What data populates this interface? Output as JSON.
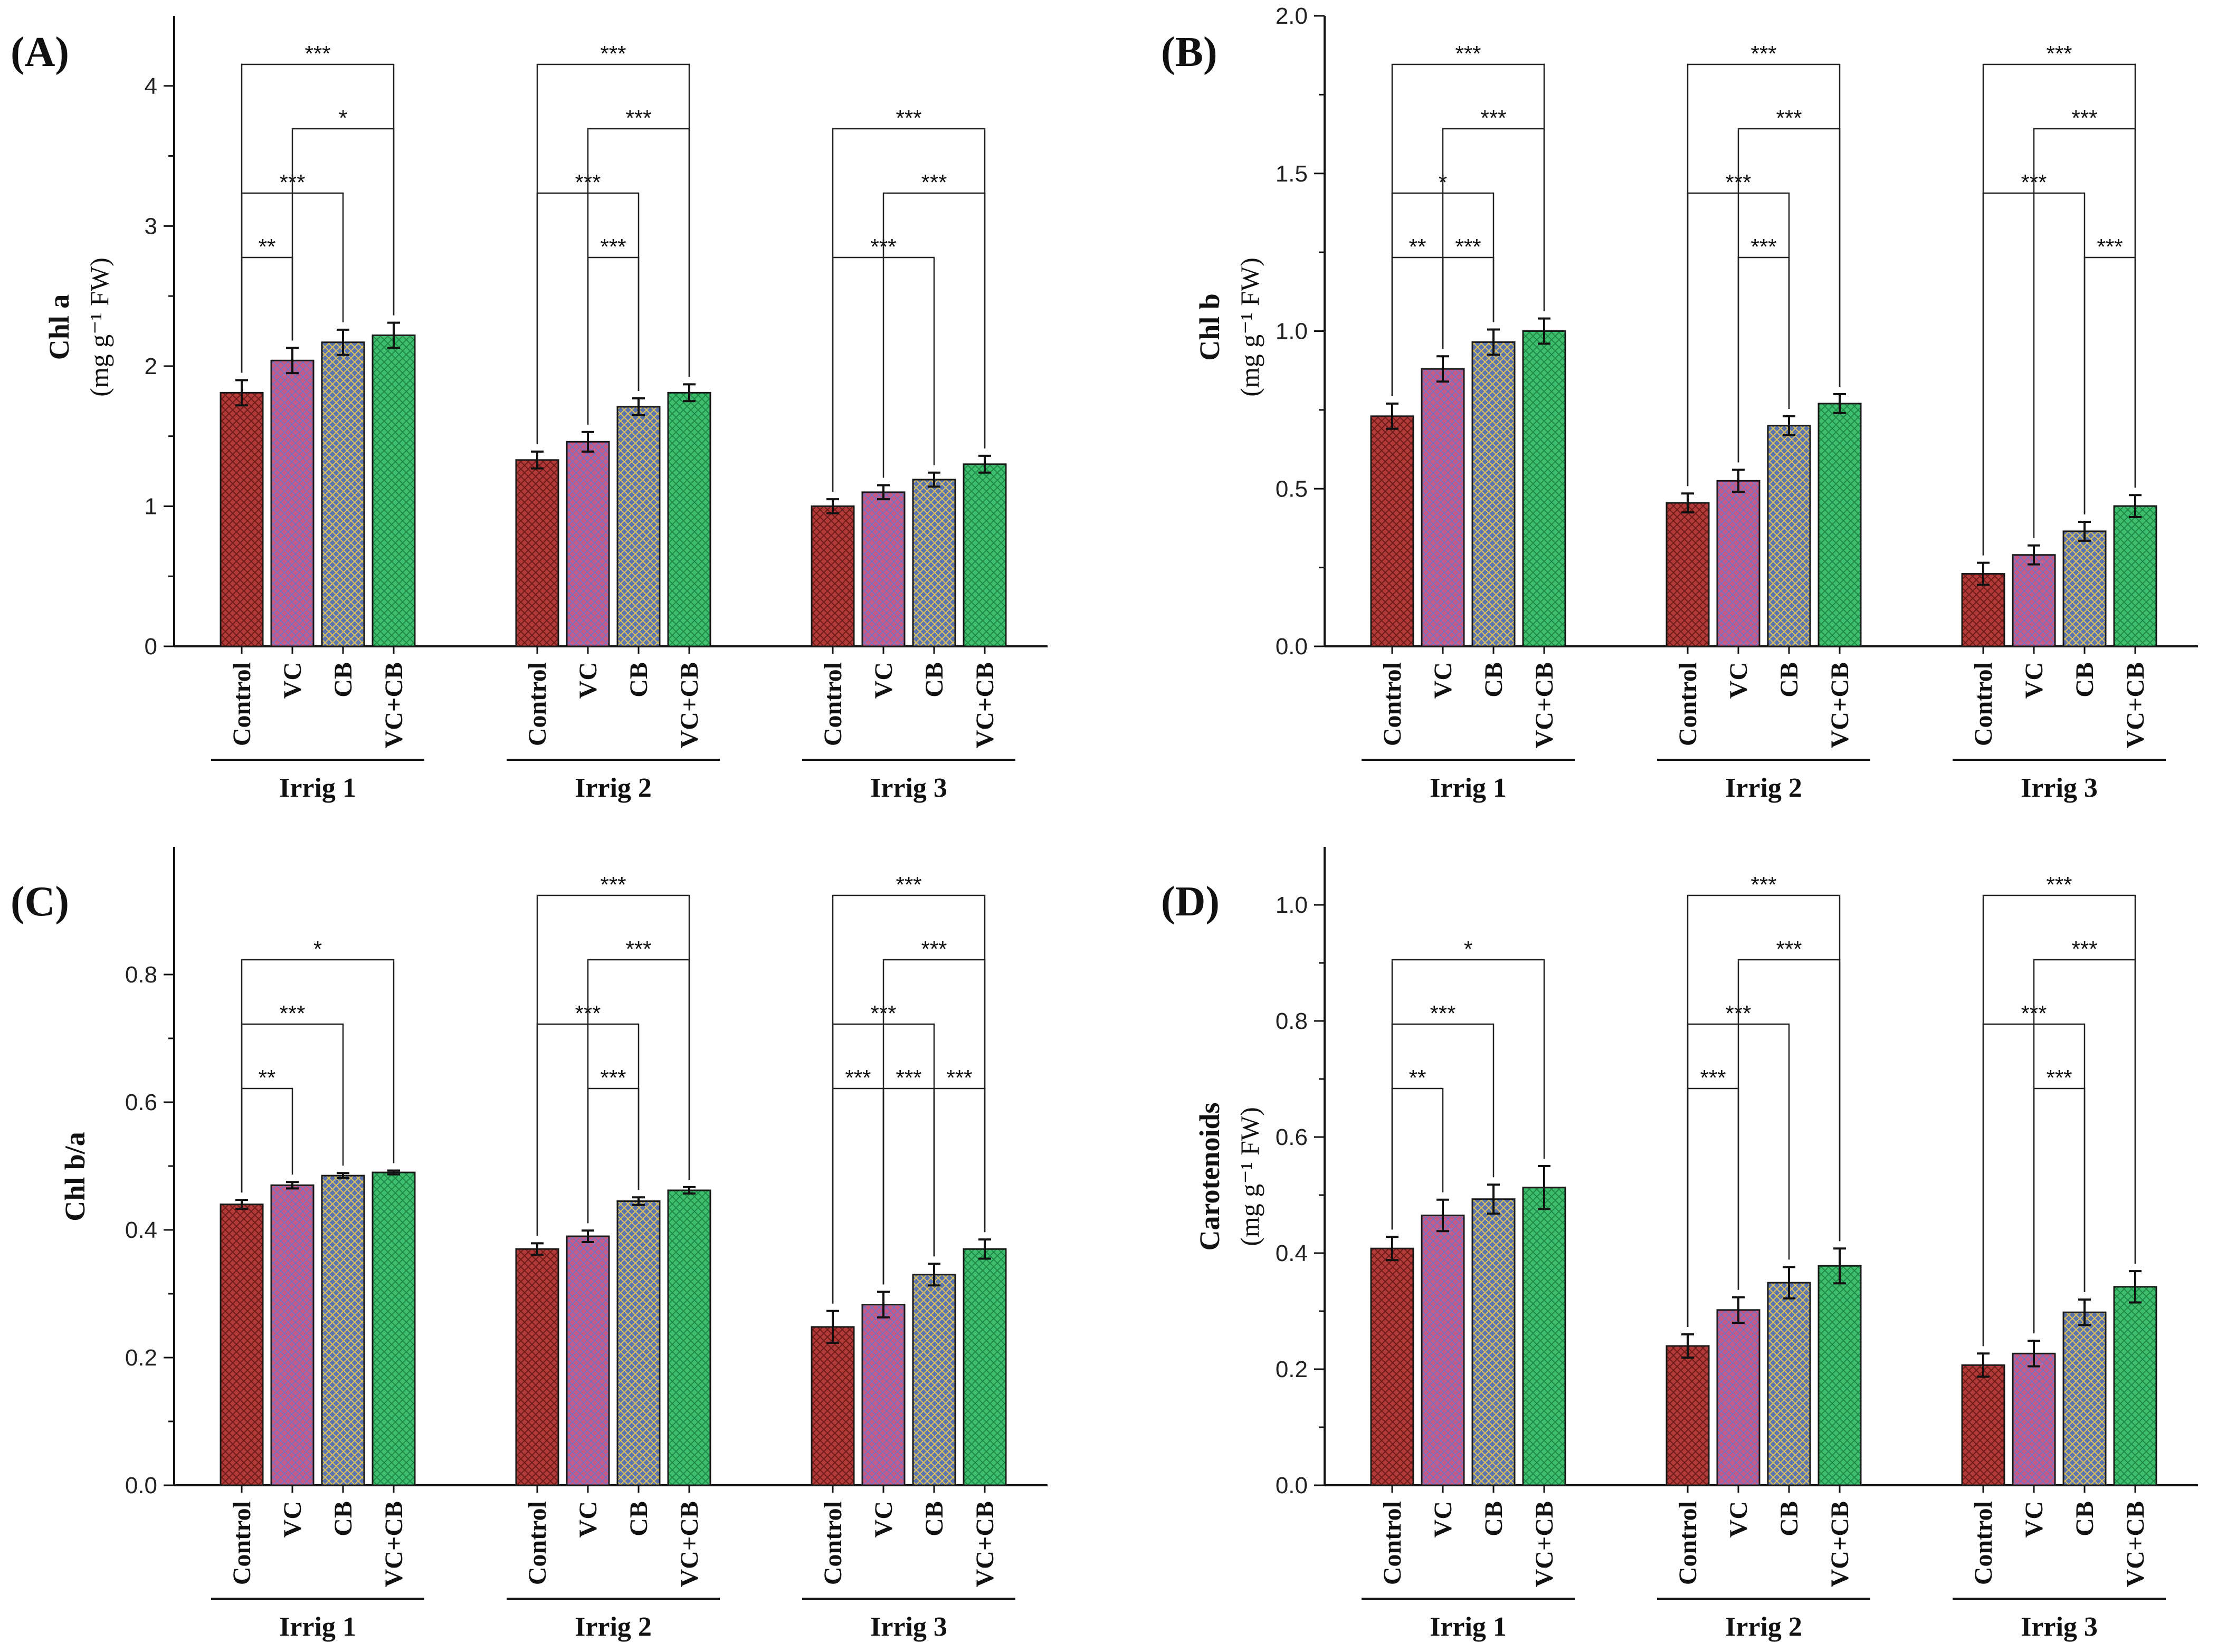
{
  "categories": [
    "Control",
    "VC",
    "CB",
    "VC+CB"
  ],
  "groups": [
    "Irrig 1",
    "Irrig 2",
    "Irrig 3"
  ],
  "treatment_colors": {
    "Control": "#b23a38",
    "VC": "#c85a86",
    "CB": "#5a74b0",
    "VC+CB": "#3fbf6e"
  },
  "chart_data": [
    {
      "type": "bar",
      "panel": "(A)",
      "ylabel_main": "Chl a",
      "ylabel_unit": "(mg g⁻¹ FW)",
      "ylim": [
        0,
        4.5
      ],
      "ytick_values": [
        0,
        1,
        2,
        3,
        4
      ],
      "ytick_labels": [
        "0",
        "1",
        "2",
        "3",
        "4"
      ],
      "series": [
        {
          "group": "Irrig 1",
          "values": [
            1.81,
            2.04,
            2.17,
            2.22
          ],
          "errors": [
            0.09,
            0.09,
            0.09,
            0.09
          ]
        },
        {
          "group": "Irrig 2",
          "values": [
            1.33,
            1.46,
            1.71,
            1.81
          ],
          "errors": [
            0.06,
            0.07,
            0.06,
            0.06
          ]
        },
        {
          "group": "Irrig 3",
          "values": [
            1.0,
            1.1,
            1.19,
            1.3
          ],
          "errors": [
            0.05,
            0.05,
            0.05,
            0.06
          ]
        }
      ],
      "significance": [
        {
          "group": 0,
          "from": 0,
          "to": 1,
          "level": 4,
          "label": "**"
        },
        {
          "group": 0,
          "from": 0,
          "to": 2,
          "level": 3,
          "label": "***"
        },
        {
          "group": 0,
          "from": 1,
          "to": 3,
          "level": 2,
          "label": "*"
        },
        {
          "group": 0,
          "from": 0,
          "to": 3,
          "level": 1,
          "label": "***"
        },
        {
          "group": 1,
          "from": 1,
          "to": 2,
          "level": 4,
          "label": "***"
        },
        {
          "group": 1,
          "from": 0,
          "to": 2,
          "level": 3,
          "label": "***"
        },
        {
          "group": 1,
          "from": 1,
          "to": 3,
          "level": 2,
          "label": "***"
        },
        {
          "group": 1,
          "from": 0,
          "to": 3,
          "level": 1,
          "label": "***"
        },
        {
          "group": 2,
          "from": 0,
          "to": 2,
          "level": 4,
          "label": "***"
        },
        {
          "group": 2,
          "from": 1,
          "to": 3,
          "level": 3,
          "label": "***"
        },
        {
          "group": 2,
          "from": 0,
          "to": 3,
          "level": 2,
          "label": "***"
        }
      ]
    },
    {
      "type": "bar",
      "panel": "(B)",
      "ylabel_main": "Chl b",
      "ylabel_unit": "(mg g⁻¹ FW)",
      "ylim": [
        0,
        2.0
      ],
      "ytick_values": [
        0,
        0.5,
        1.0,
        1.5,
        2.0
      ],
      "ytick_labels": [
        "0.0",
        "0.5",
        "1.0",
        "1.5",
        "2.0"
      ],
      "series": [
        {
          "group": "Irrig 1",
          "values": [
            0.73,
            0.88,
            0.965,
            1.0
          ],
          "errors": [
            0.04,
            0.04,
            0.04,
            0.04
          ]
        },
        {
          "group": "Irrig 2",
          "values": [
            0.455,
            0.525,
            0.7,
            0.77
          ],
          "errors": [
            0.03,
            0.035,
            0.03,
            0.03
          ]
        },
        {
          "group": "Irrig 3",
          "values": [
            0.23,
            0.29,
            0.365,
            0.445
          ],
          "errors": [
            0.035,
            0.03,
            0.03,
            0.035
          ]
        }
      ],
      "significance": [
        {
          "group": 0,
          "from": 0,
          "to": 1,
          "level": 4,
          "label": "**"
        },
        {
          "group": 0,
          "from": 1,
          "to": 2,
          "level": 4,
          "label": "***"
        },
        {
          "group": 0,
          "from": 0,
          "to": 2,
          "level": 3,
          "label": "*"
        },
        {
          "group": 0,
          "from": 1,
          "to": 3,
          "level": 2,
          "label": "***"
        },
        {
          "group": 0,
          "from": 0,
          "to": 3,
          "level": 1,
          "label": "***"
        },
        {
          "group": 1,
          "from": 1,
          "to": 2,
          "level": 4,
          "label": "***"
        },
        {
          "group": 1,
          "from": 0,
          "to": 2,
          "level": 3,
          "label": "***"
        },
        {
          "group": 1,
          "from": 1,
          "to": 3,
          "level": 2,
          "label": "***"
        },
        {
          "group": 1,
          "from": 0,
          "to": 3,
          "level": 1,
          "label": "***"
        },
        {
          "group": 2,
          "from": 2,
          "to": 3,
          "level": 4,
          "label": "***"
        },
        {
          "group": 2,
          "from": 0,
          "to": 2,
          "level": 3,
          "label": "***"
        },
        {
          "group": 2,
          "from": 1,
          "to": 3,
          "level": 2,
          "label": "***"
        },
        {
          "group": 2,
          "from": 0,
          "to": 3,
          "level": 1,
          "label": "***"
        }
      ]
    },
    {
      "type": "bar",
      "panel": "(C)",
      "ylabel_main": "Chl b/a",
      "ylabel_unit": "",
      "ylim": [
        0,
        1.0
      ],
      "ytick_values": [
        0,
        0.2,
        0.4,
        0.6,
        0.8
      ],
      "ytick_labels": [
        "0.0",
        "0.2",
        "0.4",
        "0.6",
        "0.8"
      ],
      "series": [
        {
          "group": "Irrig 1",
          "values": [
            0.44,
            0.47,
            0.485,
            0.49
          ],
          "errors": [
            0.007,
            0.005,
            0.004,
            0.003
          ]
        },
        {
          "group": "Irrig 2",
          "values": [
            0.37,
            0.39,
            0.445,
            0.462
          ],
          "errors": [
            0.009,
            0.009,
            0.006,
            0.005
          ]
        },
        {
          "group": "Irrig 3",
          "values": [
            0.248,
            0.283,
            0.33,
            0.37
          ],
          "errors": [
            0.025,
            0.02,
            0.017,
            0.015
          ]
        }
      ],
      "significance": [
        {
          "group": 0,
          "from": 0,
          "to": 1,
          "level": 4,
          "label": "**"
        },
        {
          "group": 0,
          "from": 0,
          "to": 2,
          "level": 3,
          "label": "***"
        },
        {
          "group": 0,
          "from": 0,
          "to": 3,
          "level": 2,
          "label": "*"
        },
        {
          "group": 1,
          "from": 1,
          "to": 2,
          "level": 4,
          "label": "***"
        },
        {
          "group": 1,
          "from": 0,
          "to": 2,
          "level": 3,
          "label": "***"
        },
        {
          "group": 1,
          "from": 1,
          "to": 3,
          "level": 2,
          "label": "***"
        },
        {
          "group": 1,
          "from": 0,
          "to": 3,
          "level": 1,
          "label": "***"
        },
        {
          "group": 2,
          "from": 0,
          "to": 1,
          "level": 4,
          "label": "***"
        },
        {
          "group": 2,
          "from": 1,
          "to": 2,
          "level": 4,
          "label": "***"
        },
        {
          "group": 2,
          "from": 2,
          "to": 3,
          "level": 4,
          "label": "***"
        },
        {
          "group": 2,
          "from": 0,
          "to": 2,
          "level": 3,
          "label": "***"
        },
        {
          "group": 2,
          "from": 1,
          "to": 3,
          "level": 2,
          "label": "***"
        },
        {
          "group": 2,
          "from": 0,
          "to": 3,
          "level": 1,
          "label": "***"
        }
      ]
    },
    {
      "type": "bar",
      "panel": "(D)",
      "ylabel_main": "Carotenoids",
      "ylabel_unit": "(mg g⁻¹ FW)",
      "ylim": [
        0,
        1.1
      ],
      "ytick_values": [
        0,
        0.2,
        0.4,
        0.6,
        0.8,
        1.0
      ],
      "ytick_labels": [
        "0.0",
        "0.2",
        "0.4",
        "0.6",
        "0.8",
        "1.0"
      ],
      "series": [
        {
          "group": "Irrig 1",
          "values": [
            0.408,
            0.465,
            0.493,
            0.513
          ],
          "errors": [
            0.02,
            0.027,
            0.025,
            0.037
          ]
        },
        {
          "group": "Irrig 2",
          "values": [
            0.24,
            0.302,
            0.349,
            0.378
          ],
          "errors": [
            0.02,
            0.022,
            0.027,
            0.03
          ]
        },
        {
          "group": "Irrig 3",
          "values": [
            0.207,
            0.227,
            0.298,
            0.342
          ],
          "errors": [
            0.02,
            0.022,
            0.022,
            0.027
          ]
        }
      ],
      "significance": [
        {
          "group": 0,
          "from": 0,
          "to": 1,
          "level": 4,
          "label": "**"
        },
        {
          "group": 0,
          "from": 0,
          "to": 2,
          "level": 3,
          "label": "***"
        },
        {
          "group": 0,
          "from": 0,
          "to": 3,
          "level": 2,
          "label": "*"
        },
        {
          "group": 1,
          "from": 0,
          "to": 1,
          "level": 4,
          "label": "***"
        },
        {
          "group": 1,
          "from": 0,
          "to": 2,
          "level": 3,
          "label": "***"
        },
        {
          "group": 1,
          "from": 1,
          "to": 3,
          "level": 2,
          "label": "***"
        },
        {
          "group": 1,
          "from": 0,
          "to": 3,
          "level": 1,
          "label": "***"
        },
        {
          "group": 2,
          "from": 1,
          "to": 2,
          "level": 4,
          "label": "***"
        },
        {
          "group": 2,
          "from": 0,
          "to": 2,
          "level": 3,
          "label": "***"
        },
        {
          "group": 2,
          "from": 1,
          "to": 3,
          "level": 2,
          "label": "***"
        },
        {
          "group": 2,
          "from": 0,
          "to": 3,
          "level": 1,
          "label": "***"
        }
      ]
    }
  ]
}
